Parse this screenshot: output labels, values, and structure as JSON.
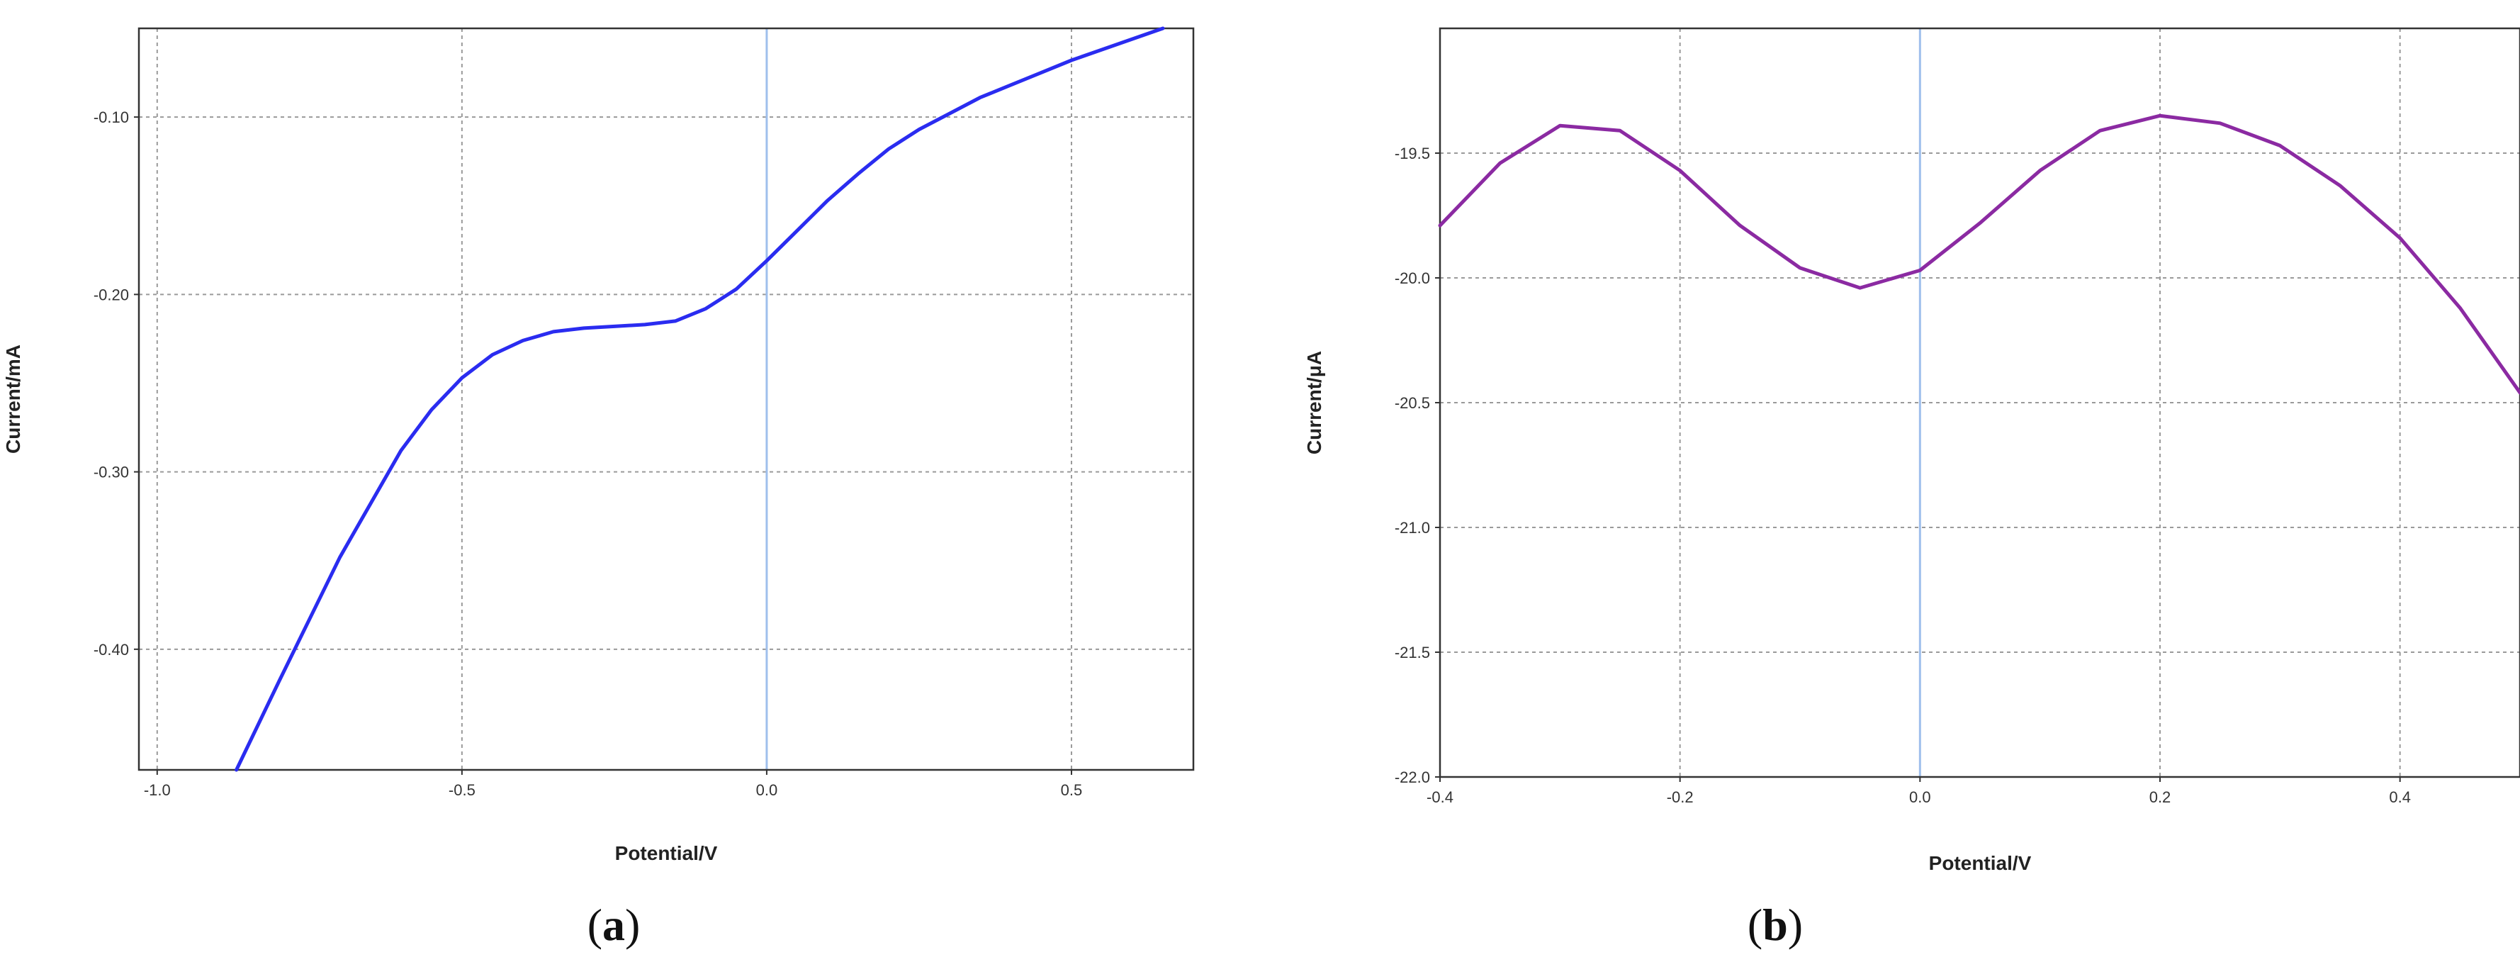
{
  "colors": {
    "series_a": "#2a2cf0",
    "series_b": "#8b2aa2",
    "zero_line": "#9fbfec",
    "grid": "#9a9a9a"
  },
  "panels": [
    {
      "open": "(",
      "letter": "a",
      "close": ")"
    },
    {
      "open": "(",
      "letter": "b",
      "close": ")"
    }
  ],
  "chart_data": [
    {
      "type": "line",
      "title": "",
      "xlabel": "Potential/V",
      "ylabel": "Current/mA",
      "xlim": [
        -1.03,
        0.7
      ],
      "ylim": [
        -0.468,
        -0.05
      ],
      "x_ticks": [
        -1.0,
        -0.5,
        0.0,
        0.5
      ],
      "x_tick_labels": [
        "-1.0",
        "-0.5",
        "0.0",
        "0.5"
      ],
      "y_ticks": [
        -0.1,
        -0.2,
        -0.3,
        -0.4
      ],
      "y_tick_labels": [
        "-0.10",
        "-0.20",
        "-0.30",
        "-0.40"
      ],
      "grid": true,
      "series": [
        {
          "x": [
            -0.87,
            -0.8,
            -0.75,
            -0.7,
            -0.65,
            -0.6,
            -0.55,
            -0.5,
            -0.45,
            -0.4,
            -0.35,
            -0.3,
            -0.25,
            -0.2,
            -0.15,
            -0.1,
            -0.05,
            0.0,
            0.05,
            0.1,
            0.15,
            0.2,
            0.25,
            0.3,
            0.35,
            0.4,
            0.45,
            0.5,
            0.55,
            0.6,
            0.65
          ],
          "y": [
            -0.468,
            -0.418,
            -0.383,
            -0.348,
            -0.318,
            -0.288,
            -0.265,
            -0.247,
            -0.234,
            -0.226,
            -0.221,
            -0.219,
            -0.218,
            -0.217,
            -0.215,
            -0.208,
            -0.197,
            -0.181,
            -0.164,
            -0.147,
            -0.132,
            -0.118,
            -0.107,
            -0.098,
            -0.089,
            -0.082,
            -0.075,
            -0.068,
            -0.062,
            -0.056,
            -0.05
          ]
        }
      ]
    },
    {
      "type": "line",
      "title": "",
      "xlabel": "Potential/V",
      "ylabel": "Current/μA",
      "xlim": [
        -0.4,
        0.5
      ],
      "ylim": [
        -22.0,
        -19.0
      ],
      "x_ticks": [
        -0.4,
        -0.2,
        0.0,
        0.2,
        0.4
      ],
      "x_tick_labels": [
        "-0.4",
        "-0.2",
        "0.0",
        "0.2",
        "0.4"
      ],
      "y_ticks": [
        -19.5,
        -20.0,
        -20.5,
        -21.0,
        -21.5,
        -22.0
      ],
      "y_tick_labels": [
        "-19.5",
        "-20.0",
        "-20.5",
        "-21.0",
        "-21.5",
        "-22.0"
      ],
      "grid": true,
      "series": [
        {
          "x": [
            -0.4,
            -0.35,
            -0.3,
            -0.25,
            -0.2,
            -0.15,
            -0.1,
            -0.05,
            0.0,
            0.05,
            0.1,
            0.15,
            0.2,
            0.25,
            0.3,
            0.35,
            0.4,
            0.45,
            0.5
          ],
          "y": [
            -19.79,
            -19.54,
            -19.39,
            -19.41,
            -19.57,
            -19.79,
            -19.96,
            -20.04,
            -19.97,
            -19.78,
            -19.57,
            -19.41,
            -19.35,
            -19.38,
            -19.47,
            -19.63,
            -19.84,
            -20.12,
            -20.46
          ]
        }
      ]
    }
  ]
}
